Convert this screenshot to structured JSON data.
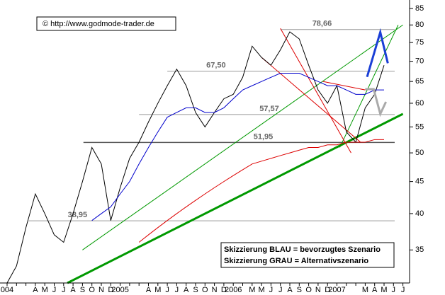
{
  "chart_data": {
    "type": "line",
    "log_scale": true,
    "source": "© http://www.godmode-trader.de",
    "legend_lines": [
      "Skizzierung BLAU = bevorzugtes Szenario",
      "Skizzierung GRAU = Alternativszenario"
    ],
    "categories": [
      "004",
      null,
      null,
      "A",
      "M",
      "J",
      "J",
      "A",
      "S",
      "O",
      "N",
      "D",
      "2005",
      null,
      null,
      "A",
      "M",
      "J",
      "J",
      "A",
      "S",
      "O",
      "N",
      "D",
      "2006",
      null,
      "M",
      "M",
      "J",
      "J",
      "A",
      "S",
      "O",
      "N",
      "D",
      "2007",
      null,
      null,
      "M",
      "A",
      "M",
      "J",
      "J",
      "A"
    ],
    "series": [
      {
        "name": "Kurs",
        "color": "#000000",
        "values": [
          31,
          33,
          38,
          43,
          40,
          37,
          36,
          40,
          45,
          51,
          48,
          39,
          44,
          49,
          52,
          56,
          60,
          64,
          68,
          64,
          58,
          55,
          58,
          61,
          62,
          66,
          74,
          71,
          69,
          73,
          78,
          76,
          69,
          63,
          60,
          64,
          54,
          52,
          59,
          62,
          69,
          null,
          null,
          null
        ]
      },
      {
        "name": "GD blau",
        "color": "#0000cc",
        "values": [
          null,
          null,
          null,
          null,
          null,
          null,
          null,
          null,
          null,
          39,
          40,
          41,
          43,
          45,
          48,
          51,
          54,
          57,
          58,
          59,
          59,
          58,
          58,
          59,
          61,
          63,
          64,
          65,
          66,
          67,
          67,
          67,
          66,
          65,
          64,
          64,
          63,
          62,
          62,
          63,
          63,
          null,
          null,
          null
        ]
      },
      {
        "name": "GD rot",
        "color": "#dd0000",
        "values": [
          null,
          null,
          null,
          null,
          null,
          null,
          null,
          null,
          null,
          null,
          null,
          null,
          null,
          null,
          36,
          37,
          38,
          39,
          40,
          41,
          42,
          43,
          44,
          45,
          46,
          47,
          48,
          48.5,
          49,
          49.5,
          50,
          50.5,
          51,
          51,
          51.5,
          51.5,
          52,
          52,
          52,
          52.5,
          52.5,
          null,
          null,
          null
        ]
      }
    ],
    "levels": [
      {
        "value": 78.66,
        "label": "78,66",
        "start": 29
      },
      {
        "value": 67.5,
        "label": "67,50",
        "start": 17
      },
      {
        "value": 57.57,
        "label": "57,57",
        "start": 14
      },
      {
        "value": 51.95,
        "label": "51,95",
        "start": 8.1
      },
      {
        "value": 38.95,
        "label": "38,95",
        "start": 2.3
      }
    ],
    "trendlines": [
      {
        "color": "#009900",
        "width": 3,
        "x": [
          6.4,
          42
        ],
        "values": [
          31,
          57.7
        ]
      },
      {
        "color": "#009900",
        "width": 1,
        "x": [
          8,
          42
        ],
        "values": [
          35,
          80
        ]
      },
      {
        "color": "#009900",
        "width": 1,
        "x": [
          35.3,
          41.5
        ],
        "values": [
          51,
          80
        ]
      },
      {
        "color": "#dd0000",
        "width": 1,
        "x": [
          29,
          36.5
        ],
        "values": [
          79,
          50
        ]
      },
      {
        "color": "#dd0000",
        "width": 1,
        "x": [
          27,
          37.5
        ],
        "values": [
          71,
          52
        ]
      },
      {
        "color": "#dd0000",
        "width": 1,
        "x": [
          33.5,
          38
        ],
        "values": [
          65,
          63
        ]
      }
    ],
    "scenarios": [
      {
        "color": "#1a3fd6",
        "x": [
          38.2,
          39.6,
          40.4
        ],
        "values": [
          66.1,
          77.9,
          69.5
        ]
      },
      {
        "color": "#aaaaaa",
        "x": [
          38,
          38.9,
          39.6,
          40.2
        ],
        "values": [
          63.2,
          63.2,
          57.7,
          60.3
        ]
      }
    ],
    "ylim": [
      31,
      87
    ],
    "yticks": [
      35,
      40,
      45,
      50,
      55,
      60,
      65,
      70,
      75,
      80,
      85
    ]
  }
}
